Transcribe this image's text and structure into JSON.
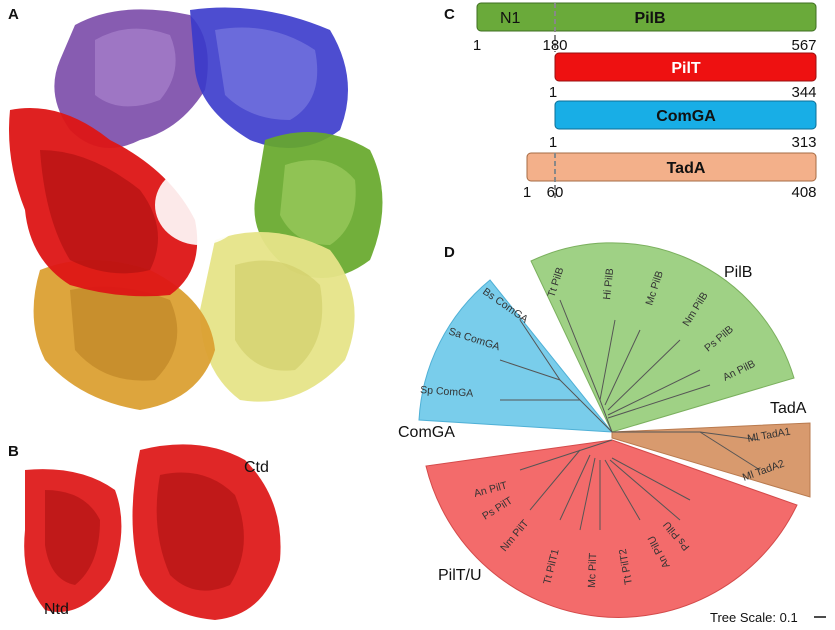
{
  "panel_labels": {
    "a": "A",
    "b": "B",
    "c": "C",
    "d": "D"
  },
  "panel_b": {
    "ntd": "Ntd",
    "ctd": "Ctd"
  },
  "domains": {
    "pilb": {
      "name": "PilB",
      "sub": "N1",
      "start": "1",
      "mid": "180",
      "end": "567",
      "color": "#6aaa3a"
    },
    "pilt": {
      "name": "PilT",
      "start": "1",
      "end": "344",
      "color": "#ee1111"
    },
    "comga": {
      "name": "ComGA",
      "start": "1",
      "end": "313",
      "color": "#18aee6"
    },
    "tada": {
      "name": "TadA",
      "start": "1",
      "mid": "60",
      "end": "408",
      "color": "#f3b08a"
    }
  },
  "tree": {
    "clades": {
      "pilb": "PilB",
      "comga": "ComGA",
      "tada": "TadA",
      "piltu": "PilT/U"
    },
    "leaves": {
      "pilb": [
        "Tt PilB",
        "Hi PilB",
        "Mc PilB",
        "Nm PilB",
        "Ps PilB",
        "An PilB"
      ],
      "comga": [
        "Bs ComGA",
        "Sa ComGA",
        "Sp ComGA"
      ],
      "tada": [
        "Ml TadA1",
        "Ml TadA2"
      ],
      "piltu": [
        "An PilT",
        "Ps PilT",
        "Nm PilT",
        "Tt PilT1",
        "Mc PilT",
        "Tt PilT2",
        "An PilU",
        "Ps PilU"
      ]
    },
    "scale_label": "Tree Scale: 0.1",
    "colors": {
      "pilb": "#9fd185",
      "comga": "#79cdeb",
      "tada": "#d89a6e",
      "piltu": "#f36b6b"
    }
  },
  "protein_colors": {
    "purple": "#7a4aa8",
    "blue": "#3a3acb",
    "green": "#66a82a",
    "red": "#dd1515",
    "orange": "#dba033",
    "yellow": "#e6e488"
  }
}
